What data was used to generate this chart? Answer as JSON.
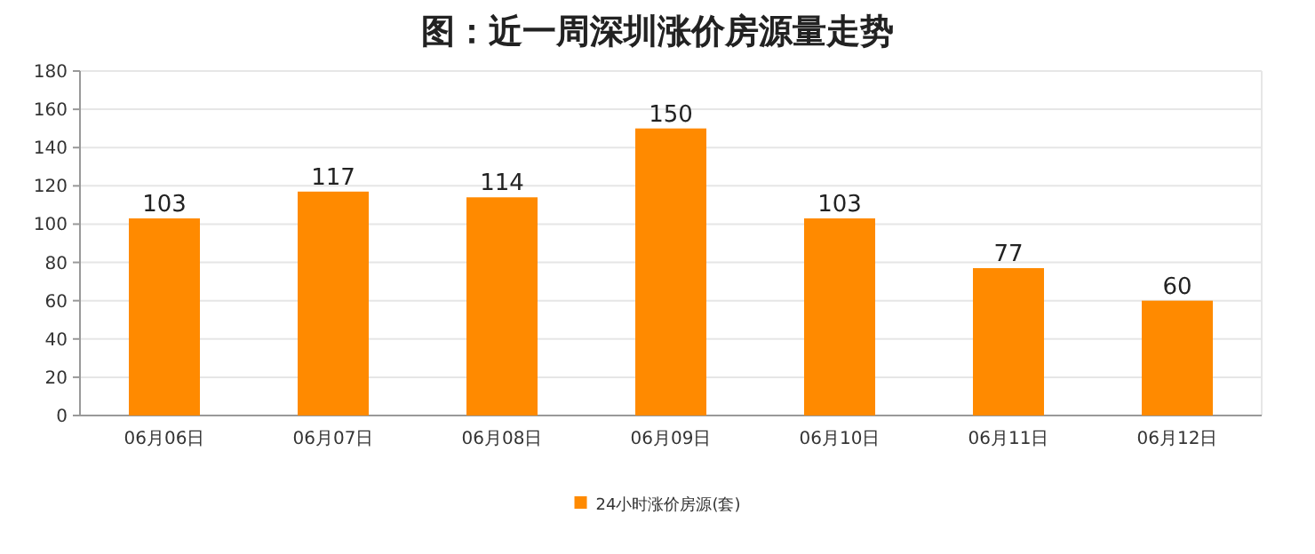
{
  "chart_data": {
    "type": "bar",
    "title": "图：近一周深圳涨价房源量走势",
    "categories": [
      "06月06日",
      "06月07日",
      "06月08日",
      "06月09日",
      "06月10日",
      "06月11日",
      "06月12日"
    ],
    "series": [
      {
        "name": "24小时涨价房源(套)",
        "color": "#ff8a00",
        "values": [
          103,
          117,
          114,
          150,
          103,
          77,
          60
        ]
      }
    ],
    "ylim": [
      0,
      180
    ],
    "yticks": [
      0,
      20,
      40,
      60,
      80,
      100,
      120,
      140,
      160,
      180
    ],
    "grid": "y",
    "data_labels": true,
    "legend": "bottom"
  }
}
